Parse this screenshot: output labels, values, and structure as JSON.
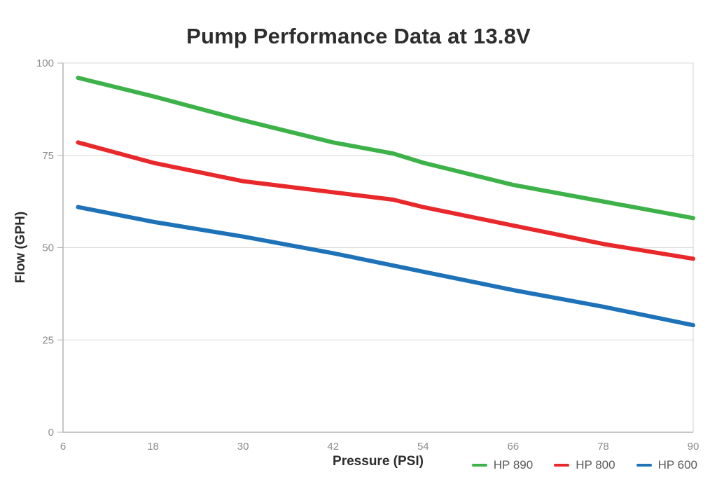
{
  "chart_data": {
    "type": "line",
    "title": "Pump Performance Data at 13.8V",
    "xlabel": "Pressure (PSI)",
    "ylabel": "Flow (GPH)",
    "xlim": [
      6,
      90
    ],
    "ylim": [
      0,
      100
    ],
    "x_ticks": [
      6,
      18,
      30,
      42,
      54,
      66,
      78,
      90
    ],
    "y_ticks": [
      0,
      25,
      50,
      75,
      100
    ],
    "grid": "horizontal",
    "legend_position": "bottom-right",
    "series": [
      {
        "name": "HP 890",
        "color": "#3db249",
        "points": [
          [
            8,
            96
          ],
          [
            18,
            91
          ],
          [
            30,
            84.5
          ],
          [
            42,
            78.5
          ],
          [
            50,
            75.5
          ],
          [
            54,
            73
          ],
          [
            66,
            67
          ],
          [
            78,
            62.5
          ],
          [
            90,
            58
          ]
        ]
      },
      {
        "name": "HP 800",
        "color": "#e8282b",
        "points": [
          [
            8,
            78.5
          ],
          [
            18,
            73
          ],
          [
            30,
            68
          ],
          [
            42,
            65
          ],
          [
            50,
            63
          ],
          [
            54,
            61
          ],
          [
            66,
            56
          ],
          [
            78,
            51
          ],
          [
            90,
            47
          ]
        ]
      },
      {
        "name": "HP 600",
        "color": "#1e72b8",
        "points": [
          [
            8,
            61
          ],
          [
            18,
            57
          ],
          [
            30,
            53
          ],
          [
            42,
            48.5
          ],
          [
            54,
            43.5
          ],
          [
            66,
            38.5
          ],
          [
            78,
            34
          ],
          [
            90,
            29
          ]
        ]
      }
    ],
    "style": {
      "grid_color": "#d9d9d9",
      "axis_color": "#b3b3b3",
      "right_border_color": "#d0d0d0",
      "tick_label_color": "#8c8c8c",
      "line_width": 6
    }
  }
}
